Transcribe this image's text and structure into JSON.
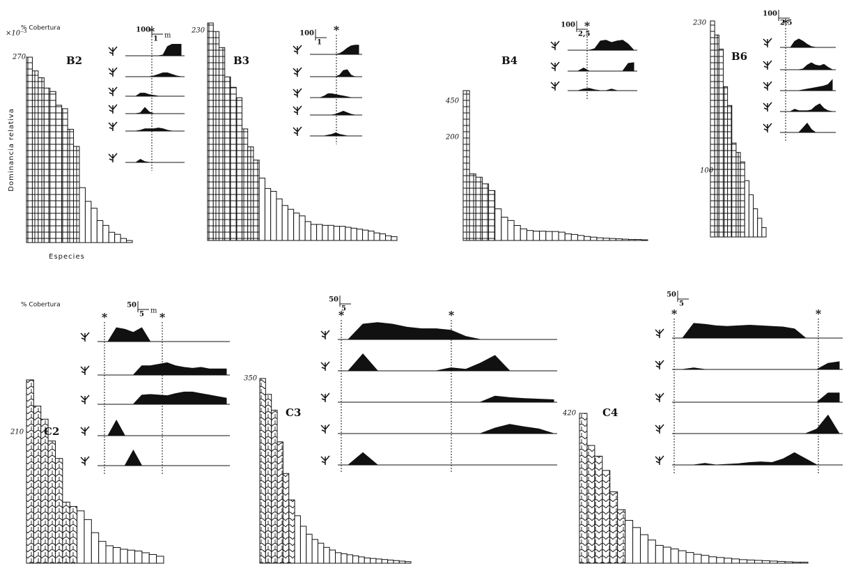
{
  "chart_data": [
    {
      "type": "bar",
      "title": "B2",
      "ylabel": "Dominancia relativa",
      "xlabel": "Especies",
      "y_unit": "×10⁻³",
      "values": [
        270,
        250,
        240,
        225,
        220,
        200,
        195,
        165,
        140,
        80,
        60,
        50,
        32,
        25,
        15,
        12,
        6,
        3
      ]
    },
    {
      "type": "bar",
      "title": "B3",
      "values": [
        230,
        221,
        204,
        173,
        162,
        151,
        118,
        99,
        85,
        66,
        55,
        52,
        44,
        37,
        33,
        29,
        26,
        20,
        17,
        17,
        16,
        16,
        15,
        15,
        14,
        13,
        12,
        11,
        10,
        8,
        7,
        5,
        4
      ]
    },
    {
      "type": "bar",
      "title": "B4",
      "values": [
        450,
        200,
        190,
        170,
        150,
        95,
        70,
        60,
        45,
        35,
        30,
        28,
        28,
        27,
        27,
        25,
        20,
        18,
        15,
        12,
        10,
        8,
        7,
        6,
        5,
        4,
        3,
        3,
        2
      ]
    },
    {
      "type": "bar",
      "title": "B6",
      "values": [
        230,
        215,
        200,
        160,
        140,
        100,
        90,
        80,
        60,
        45,
        30,
        20,
        10
      ]
    },
    {
      "type": "bar",
      "title": "C2",
      "values": [
        210,
        180,
        165,
        140,
        120,
        70,
        65,
        60,
        50,
        35,
        25,
        20,
        18,
        16,
        15,
        14,
        12,
        10,
        8
      ]
    },
    {
      "type": "bar",
      "title": "C3",
      "values": [
        350,
        320,
        290,
        230,
        170,
        120,
        90,
        70,
        55,
        45,
        38,
        30,
        25,
        20,
        18,
        16,
        14,
        12,
        10,
        9,
        8,
        7,
        6,
        5,
        4,
        3
      ]
    },
    {
      "type": "bar",
      "title": "C4",
      "values": [
        420,
        330,
        300,
        260,
        200,
        150,
        120,
        100,
        80,
        65,
        50,
        45,
        40,
        35,
        30,
        25,
        22,
        18,
        16,
        14,
        12,
        10,
        9,
        8,
        7,
        6,
        5,
        4,
        3,
        3
      ]
    },
    {
      "type": "profile",
      "ylabel": "% Cobertura",
      "yscale": 100,
      "xscale": "1",
      "xunit": "m",
      "markers": [
        "*"
      ],
      "series": [
        {
          "values": [
            0,
            0,
            0,
            0,
            0,
            0,
            5,
            60,
            75,
            75,
            75
          ]
        },
        {
          "values": [
            0,
            0,
            0,
            0,
            5,
            15,
            25,
            25,
            15,
            5,
            0
          ]
        },
        {
          "values": [
            0,
            20,
            20,
            10,
            5,
            0,
            0,
            0,
            0,
            0,
            0
          ]
        },
        {
          "values": [
            0,
            5,
            40,
            10,
            0,
            0,
            0,
            0,
            0,
            0,
            0
          ]
        },
        {
          "values": [
            0,
            5,
            15,
            15,
            15,
            20,
            15,
            5,
            0,
            0,
            0
          ]
        },
        {
          "values": [
            0,
            20,
            5,
            0,
            0,
            0,
            0,
            0,
            0,
            0,
            0
          ]
        }
      ]
    },
    {
      "type": "profile",
      "yscale": 100,
      "xscale": "1",
      "markers": [
        "*"
      ],
      "series": [
        {
          "values": [
            0,
            0,
            0,
            0,
            0,
            5,
            20,
            40,
            55,
            60,
            60
          ]
        },
        {
          "values": [
            0,
            0,
            0,
            0,
            0,
            10,
            40,
            45,
            10,
            0,
            0
          ]
        },
        {
          "values": [
            0,
            10,
            25,
            25,
            20,
            15,
            10,
            5,
            0,
            0,
            0
          ]
        },
        {
          "values": [
            0,
            0,
            0,
            0,
            5,
            15,
            25,
            15,
            5,
            0,
            0
          ]
        },
        {
          "values": [
            0,
            0,
            5,
            10,
            20,
            10,
            5,
            0,
            0,
            0,
            0
          ]
        }
      ]
    },
    {
      "type": "profile",
      "yscale": 100,
      "xscale": "2,5",
      "markers": [
        "*"
      ],
      "series": [
        {
          "values": [
            0,
            0,
            0,
            10,
            60,
            65,
            50,
            60,
            65,
            40,
            0
          ]
        },
        {
          "values": [
            0,
            20,
            0,
            0,
            0,
            0,
            0,
            0,
            0,
            50,
            55
          ]
        },
        {
          "values": [
            0,
            10,
            15,
            5,
            0,
            0,
            10,
            0,
            0,
            0,
            0
          ]
        }
      ]
    },
    {
      "type": "profile",
      "yscale": 100,
      "xscale": "2,5",
      "markers": [
        "*"
      ],
      "series": [
        {
          "values": [
            0,
            40,
            55,
            40,
            20,
            5,
            0,
            0,
            0,
            0,
            0
          ]
        },
        {
          "values": [
            0,
            0,
            0,
            5,
            30,
            45,
            30,
            25,
            35,
            15,
            0
          ]
        },
        {
          "values": [
            0,
            0,
            0,
            5,
            10,
            15,
            20,
            25,
            30,
            40,
            70
          ]
        },
        {
          "values": [
            0,
            15,
            5,
            5,
            5,
            10,
            35,
            50,
            20,
            5,
            0
          ]
        },
        {
          "values": [
            0,
            0,
            0,
            30,
            60,
            20,
            0,
            0,
            0,
            0,
            0
          ]
        }
      ]
    },
    {
      "type": "profile",
      "ylabel": "% Cobertura",
      "yscale": 50,
      "xscale": "5",
      "xunit": "m",
      "markers": [
        "*",
        "*"
      ],
      "series": [
        {
          "values": [
            0,
            45,
            40,
            30,
            45,
            0,
            0,
            0,
            0,
            0,
            0,
            0,
            0,
            0,
            0
          ]
        },
        {
          "values": [
            0,
            0,
            0,
            0,
            30,
            30,
            35,
            40,
            30,
            25,
            22,
            25,
            20,
            20,
            20
          ]
        },
        {
          "values": [
            0,
            0,
            0,
            0,
            30,
            32,
            30,
            28,
            35,
            40,
            40,
            35,
            30,
            25,
            20
          ]
        },
        {
          "values": [
            0,
            50,
            0,
            0,
            0,
            0,
            0,
            0,
            0,
            0,
            0,
            0,
            0,
            0,
            0
          ]
        },
        {
          "values": [
            0,
            0,
            0,
            50,
            0,
            0,
            0,
            0,
            0,
            0,
            0,
            0,
            0,
            0,
            0
          ]
        }
      ]
    },
    {
      "type": "profile",
      "yscale": 50,
      "xscale": "5",
      "markers": [
        "*",
        "*"
      ],
      "series": [
        {
          "values": [
            0,
            50,
            55,
            50,
            40,
            35,
            35,
            30,
            10,
            0,
            0,
            0,
            0,
            0,
            0
          ]
        },
        {
          "values": [
            0,
            55,
            0,
            0,
            0,
            0,
            0,
            10,
            5,
            25,
            50,
            0,
            0,
            0,
            0
          ]
        },
        {
          "values": [
            0,
            0,
            0,
            0,
            0,
            0,
            0,
            0,
            0,
            0,
            20,
            15,
            12,
            10,
            8
          ]
        },
        {
          "values": [
            0,
            0,
            0,
            0,
            0,
            0,
            0,
            0,
            0,
            0,
            18,
            30,
            22,
            15,
            0
          ]
        },
        {
          "values": [
            0,
            40,
            0,
            0,
            0,
            0,
            0,
            0,
            0,
            0,
            0,
            0,
            0,
            0,
            0
          ]
        }
      ]
    },
    {
      "type": "profile",
      "yscale": 50,
      "xscale": "5",
      "markers": [
        "*",
        "*"
      ],
      "series": [
        {
          "values": [
            0,
            48,
            45,
            40,
            38,
            40,
            42,
            40,
            38,
            36,
            30,
            0,
            0,
            0,
            0
          ]
        },
        {
          "values": [
            0,
            5,
            0,
            0,
            0,
            0,
            0,
            0,
            0,
            0,
            0,
            0,
            0,
            20,
            25
          ]
        },
        {
          "values": [
            0,
            0,
            0,
            0,
            0,
            0,
            0,
            0,
            0,
            0,
            0,
            0,
            0,
            30,
            30
          ]
        },
        {
          "values": [
            0,
            0,
            0,
            0,
            0,
            0,
            0,
            0,
            0,
            0,
            0,
            0,
            15,
            60,
            0
          ]
        },
        {
          "values": [
            0,
            0,
            5,
            0,
            2,
            4,
            8,
            10,
            8,
            20,
            40,
            20,
            0,
            0,
            0
          ]
        }
      ]
    }
  ]
}
